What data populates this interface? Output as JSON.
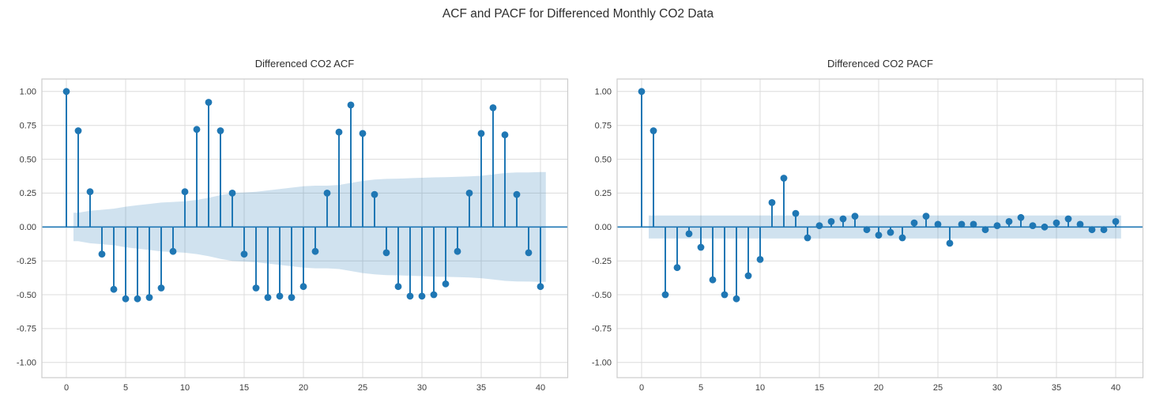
{
  "figure": {
    "title": "ACF and PACF for Differenced Monthly CO2 Data"
  },
  "colors": {
    "stem": "#1f77b4",
    "band_fill": "#1f77b4",
    "band_opacity": 0.21,
    "grid": "#dcdcdc",
    "frame": "#cccccc",
    "tick_text": "#3a3a3a",
    "title_text": "#2e2e2e",
    "background": "#ffffff"
  },
  "chart_data": [
    {
      "type": "stem",
      "title": "Differenced CO2 ACF",
      "xlabel": "",
      "ylabel": "",
      "grid": true,
      "legend": "none",
      "x": [
        0,
        1,
        2,
        3,
        4,
        5,
        6,
        7,
        8,
        9,
        10,
        11,
        12,
        13,
        14,
        15,
        16,
        17,
        18,
        19,
        20,
        21,
        22,
        23,
        24,
        25,
        26,
        27,
        28,
        29,
        30,
        31,
        32,
        33,
        34,
        35,
        36,
        37,
        38,
        39,
        40
      ],
      "values": [
        1.0,
        0.71,
        0.26,
        -0.2,
        -0.46,
        -0.53,
        -0.53,
        -0.52,
        -0.45,
        -0.18,
        0.26,
        0.72,
        0.92,
        0.71,
        0.25,
        -0.2,
        -0.45,
        -0.52,
        -0.51,
        -0.52,
        -0.44,
        -0.18,
        0.25,
        0.7,
        0.9,
        0.69,
        0.24,
        -0.19,
        -0.44,
        -0.51,
        -0.51,
        -0.5,
        -0.42,
        -0.18,
        0.25,
        0.69,
        0.88,
        0.68,
        0.24,
        -0.19,
        -0.44
      ],
      "conf_band": {
        "from_lag": 0.6,
        "to_lag": 40.45,
        "half_widths": [
          0.105,
          0.12,
          0.127,
          0.135,
          0.15,
          0.16,
          0.17,
          0.18,
          0.185,
          0.19,
          0.2,
          0.215,
          0.235,
          0.25,
          0.255,
          0.26,
          0.27,
          0.28,
          0.29,
          0.3,
          0.305,
          0.305,
          0.31,
          0.325,
          0.34,
          0.35,
          0.355,
          0.357,
          0.36,
          0.363,
          0.366,
          0.368,
          0.37,
          0.373,
          0.378,
          0.388,
          0.398,
          0.402,
          0.403,
          0.405
        ]
      },
      "xticks": [
        0,
        5,
        10,
        15,
        20,
        25,
        30,
        35,
        40
      ],
      "yticks": [
        1.0,
        0.75,
        0.5,
        0.25,
        0.0,
        -0.25,
        -0.5,
        -0.75,
        -1.0
      ],
      "ytick_labels": [
        "1.00",
        "0.75",
        "0.50",
        "0.25",
        "0.00",
        "-0.25",
        "-0.50",
        "-0.75",
        "-1.00"
      ],
      "xlim": [
        -2.07,
        42.3
      ],
      "ylim": [
        -1.112,
        1.092
      ]
    },
    {
      "type": "stem",
      "title": "Differenced CO2 PACF",
      "xlabel": "",
      "ylabel": "",
      "grid": true,
      "legend": "none",
      "x": [
        0,
        1,
        2,
        3,
        4,
        5,
        6,
        7,
        8,
        9,
        10,
        11,
        12,
        13,
        14,
        15,
        16,
        17,
        18,
        19,
        20,
        21,
        22,
        23,
        24,
        25,
        26,
        27,
        28,
        29,
        30,
        31,
        32,
        33,
        34,
        35,
        36,
        37,
        38,
        39,
        40
      ],
      "values": [
        1.0,
        0.71,
        -0.5,
        -0.3,
        -0.05,
        -0.15,
        -0.39,
        -0.5,
        -0.53,
        -0.36,
        -0.24,
        0.18,
        0.36,
        0.1,
        -0.08,
        0.01,
        0.04,
        0.06,
        0.08,
        -0.02,
        -0.06,
        -0.04,
        -0.08,
        0.03,
        0.08,
        0.02,
        -0.12,
        0.02,
        0.02,
        -0.02,
        0.01,
        0.04,
        0.07,
        0.01,
        0.0,
        0.03,
        0.06,
        0.02,
        -0.02,
        -0.02,
        0.04
      ],
      "conf_band": {
        "from_lag": 0.6,
        "to_lag": 40.45,
        "half_width": 0.085
      },
      "xticks": [
        0,
        5,
        10,
        15,
        20,
        25,
        30,
        35,
        40
      ],
      "yticks": [
        1.0,
        0.75,
        0.5,
        0.25,
        0.0,
        -0.25,
        -0.5,
        -0.75,
        -1.0
      ],
      "ytick_labels": [
        "1.00",
        "0.75",
        "0.50",
        "0.25",
        "0.00",
        "-0.25",
        "-0.50",
        "-0.75",
        "-1.00"
      ],
      "xlim": [
        -2.07,
        42.3
      ],
      "ylim": [
        -1.112,
        1.092
      ]
    }
  ]
}
